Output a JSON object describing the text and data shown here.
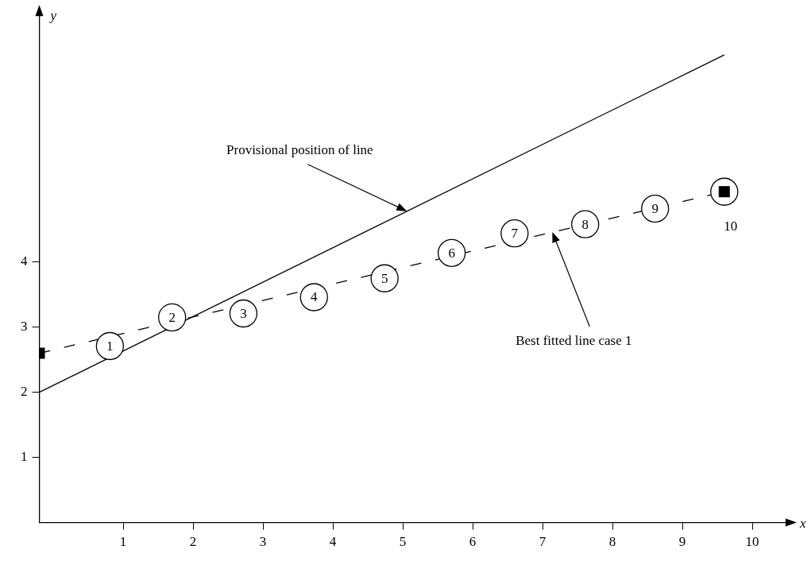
{
  "chart_data": {
    "type": "line",
    "xlabel": "x",
    "ylabel": "y",
    "xlim": [
      -0.2,
      10.5
    ],
    "ylim": [
      0,
      7.8
    ],
    "xticks": [
      1,
      2,
      3,
      4,
      5,
      6,
      7,
      8,
      9,
      10
    ],
    "yticks": [
      1,
      2,
      3,
      4
    ],
    "grid": false,
    "legend": false,
    "series": [
      {
        "x": [
          -0.2,
          9.6
        ],
        "values": [
          2,
          7.18
        ],
        "color": "#000000",
        "line_style": "solid",
        "marker": "none"
      },
      {
        "x": [
          -0.2,
          9.6
        ],
        "values": [
          2.6,
          5.08
        ],
        "color": "#000000",
        "line_style": "dashed",
        "marker": "none"
      },
      {
        "type": "scatter",
        "x": [
          0.81,
          1.7,
          2.72,
          3.73,
          4.74,
          5.7,
          6.6,
          7.61,
          8.61,
          9.6
        ],
        "values": [
          2.71,
          3.15,
          3.21,
          3.46,
          3.75,
          4.14,
          4.44,
          4.58,
          4.82,
          5.08
        ],
        "color": "#000000",
        "marker": "circle"
      },
      {
        "type": "scatter",
        "x": [
          -0.2,
          9.6
        ],
        "values": [
          2.6,
          5.08
        ],
        "color": "#000000",
        "marker": "square"
      }
    ],
    "annotations": [
      {
        "text": "1",
        "x": 0.81,
        "y": 2.71
      },
      {
        "text": "2",
        "x": 1.7,
        "y": 3.15
      },
      {
        "text": "3",
        "x": 2.72,
        "y": 3.21
      },
      {
        "text": "4",
        "x": 3.73,
        "y": 3.46
      },
      {
        "text": "5",
        "x": 4.74,
        "y": 3.75
      },
      {
        "text": "6",
        "x": 5.7,
        "y": 4.14
      },
      {
        "text": "7",
        "x": 6.6,
        "y": 4.44
      },
      {
        "text": "8",
        "x": 7.61,
        "y": 4.58
      },
      {
        "text": "9",
        "x": 8.61,
        "y": 4.82
      },
      {
        "text": "10",
        "x": 9.6,
        "y": 5.08
      },
      {
        "text": "Provisional position of line",
        "x": 5.06,
        "y": 4.78
      },
      {
        "text": "Best fitted line case 1",
        "x": 7.14,
        "y": 4.46
      }
    ]
  }
}
